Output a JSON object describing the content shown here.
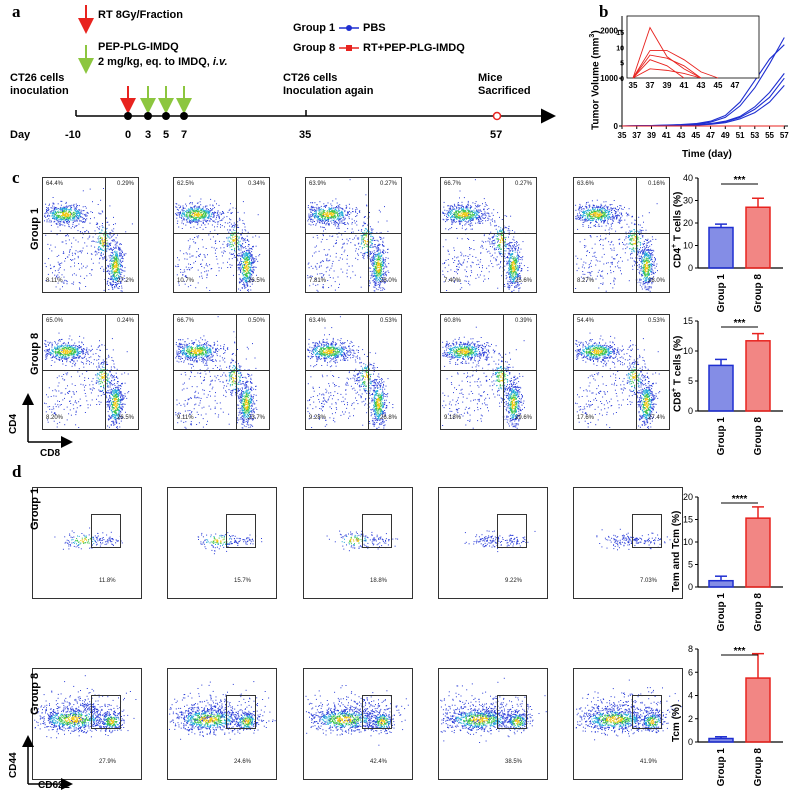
{
  "panels": {
    "a": "a",
    "b": "b",
    "c": "c",
    "d": "d"
  },
  "timeline": {
    "rt_label": "RT 8Gy/Fraction",
    "drug_label": "PEP-PLG-IMDQ",
    "dose_label": "2 mg/kg, eq. to IMDQ, ",
    "route_label": "i.v.",
    "legend_group1_name": "Group 1",
    "legend_group1_treat": "PBS",
    "legend_group8_name": "Group 8",
    "legend_group8_treat": "RT+PEP-PLG-IMDQ",
    "inoc1_line1": "CT26 cells",
    "inoc1_line2": "inoculation",
    "inoc2_line1": "CT26 cells",
    "inoc2_line2": "Inoculation again",
    "sac_line1": "Mice",
    "sac_line2": "Sacrificed",
    "day_label": "Day",
    "days": [
      "-10",
      "0",
      "3",
      "5",
      "7",
      "35",
      "57"
    ],
    "colors": {
      "rt": "#e8231f",
      "drug": "#8cc63f",
      "group1": "#1f2fd1",
      "group8": "#e8231f"
    }
  },
  "chart_data": [
    {
      "type": "line",
      "panel": "b",
      "title": "",
      "xlabel": "Time (day)",
      "ylabel": "Tumor Volume (mm3)",
      "ylabel_base": "Tumor Volume (mm",
      "ylabel_sup": "3",
      "ylabel_end": ")",
      "xticks": [
        "35",
        "37",
        "39",
        "41",
        "43",
        "45",
        "47",
        "49",
        "51",
        "53",
        "55",
        "57"
      ],
      "yticks": [
        "0",
        "1000",
        "2000"
      ],
      "xlim": [
        35,
        57.5
      ],
      "ylim": [
        0,
        2300
      ],
      "series": [
        {
          "name": "Group 1 mouse 1",
          "color": "#1f2fd1",
          "x": [
            35,
            37,
            39,
            41,
            43,
            45,
            47,
            49,
            51,
            53,
            55,
            57
          ],
          "y": [
            0,
            5,
            10,
            15,
            25,
            40,
            80,
            180,
            420,
            800,
            1300,
            1850
          ]
        },
        {
          "name": "Group 1 mouse 2",
          "color": "#1f2fd1",
          "x": [
            35,
            37,
            39,
            41,
            43,
            45,
            47,
            49,
            51,
            53,
            55,
            57
          ],
          "y": [
            0,
            5,
            10,
            20,
            30,
            50,
            100,
            220,
            500,
            950,
            1400,
            1700
          ]
        },
        {
          "name": "Group 1 mouse 3",
          "color": "#1f2fd1",
          "x": [
            35,
            37,
            39,
            41,
            43,
            45,
            47,
            49,
            51,
            53,
            55,
            57
          ],
          "y": [
            0,
            3,
            8,
            12,
            20,
            30,
            50,
            100,
            200,
            400,
            700,
            1100
          ]
        },
        {
          "name": "Group 1 mouse 4",
          "color": "#1f2fd1",
          "x": [
            35,
            37,
            39,
            41,
            43,
            45,
            47,
            49,
            51,
            53,
            55,
            57
          ],
          "y": [
            0,
            3,
            6,
            10,
            15,
            25,
            45,
            90,
            180,
            350,
            600,
            1000
          ]
        },
        {
          "name": "Group 1 mouse 5",
          "color": "#1f2fd1",
          "x": [
            35,
            37,
            39,
            41,
            43,
            45,
            47,
            49,
            51,
            53,
            55,
            57
          ],
          "y": [
            0,
            2,
            5,
            8,
            12,
            20,
            35,
            70,
            150,
            280,
            500,
            850
          ]
        },
        {
          "name": "Group 8 mice",
          "color": "#e8231f",
          "x": [
            35,
            37,
            39,
            41,
            43,
            45,
            47,
            49,
            51,
            53,
            55,
            57
          ],
          "y": [
            0,
            0,
            0,
            0,
            0,
            0,
            0,
            0,
            0,
            0,
            0,
            0
          ]
        }
      ],
      "inset": {
        "xticks": [
          "35",
          "37",
          "39",
          "41",
          "43",
          "45",
          "47"
        ],
        "yticks": [
          "0",
          "5",
          "10",
          "15"
        ],
        "xlim": [
          35,
          47
        ],
        "ylim": [
          0,
          19
        ],
        "series": [
          {
            "color": "#e8231f",
            "x": [
              35,
              37,
              39,
              41,
              43
            ],
            "y": [
              0,
              16.5,
              7,
              3,
              0
            ]
          },
          {
            "color": "#e8231f",
            "x": [
              35,
              37,
              39,
              41,
              43,
              45
            ],
            "y": [
              0,
              9,
              9,
              6,
              2,
              0
            ]
          },
          {
            "color": "#e8231f",
            "x": [
              35,
              37,
              39,
              41,
              43
            ],
            "y": [
              0,
              7.5,
              6.5,
              4,
              0
            ]
          },
          {
            "color": "#e8231f",
            "x": [
              35,
              37,
              39,
              41
            ],
            "y": [
              0,
              6,
              4,
              0
            ]
          },
          {
            "color": "#e8231f",
            "x": [
              35,
              37,
              39,
              41,
              43
            ],
            "y": [
              0,
              3,
              2.5,
              1.5,
              0
            ]
          }
        ]
      }
    },
    {
      "type": "bar",
      "panel": "c-top",
      "categories": [
        "Group 1",
        "Group 8"
      ],
      "values": [
        18,
        27
      ],
      "errors": [
        1.5,
        4
      ],
      "ylabel": "CD4+ T cells (%)",
      "ylabel_base": "CD4",
      "ylabel_sup": "+",
      "ylabel_end": " T cells (%)",
      "yticks": [
        "0",
        "10",
        "20",
        "30",
        "40"
      ],
      "ylim": [
        0,
        40
      ],
      "significance": "***",
      "colors": [
        "#1f2fd1",
        "#e8231f"
      ]
    },
    {
      "type": "bar",
      "panel": "c-bottom",
      "categories": [
        "Group 1",
        "Group 8"
      ],
      "values": [
        7.6,
        11.7
      ],
      "errors": [
        1.0,
        1.2
      ],
      "ylabel": "CD8+ T cells (%)",
      "ylabel_base": "CD8",
      "ylabel_sup": "+",
      "ylabel_end": " T cells (%)",
      "yticks": [
        "0",
        "5",
        "10",
        "15"
      ],
      "ylim": [
        0,
        15
      ],
      "significance": "***",
      "colors": [
        "#1f2fd1",
        "#e8231f"
      ]
    },
    {
      "type": "bar",
      "panel": "d-top",
      "categories": [
        "Group 1",
        "Group 8"
      ],
      "values": [
        1.4,
        15.3
      ],
      "errors": [
        1.0,
        2.5
      ],
      "ylabel": "Tem and Tcm (%)",
      "yticks": [
        "0",
        "5",
        "10",
        "15",
        "20"
      ],
      "ylim": [
        0,
        20
      ],
      "significance": "****",
      "colors": [
        "#1f2fd1",
        "#e8231f"
      ]
    },
    {
      "type": "bar",
      "panel": "d-bottom",
      "categories": [
        "Group 1",
        "Group 8"
      ],
      "values": [
        0.3,
        5.5
      ],
      "errors": [
        0.15,
        2.1
      ],
      "ylabel": "Tcm (%)",
      "yticks": [
        "0",
        "2",
        "4",
        "6",
        "8"
      ],
      "ylim": [
        0,
        8
      ],
      "significance": "***",
      "colors": [
        "#1f2fd1",
        "#e8231f"
      ]
    }
  ],
  "flow_c": {
    "row_labels": [
      "Group 1",
      "Group 8"
    ],
    "axis_y": "CD4",
    "axis_x": "CD8",
    "row1": [
      {
        "ul": "64.4%",
        "ur": "0.29%",
        "ll": "8.11%",
        "lr": "27.2%"
      },
      {
        "ul": "62.5%",
        "ur": "0.34%",
        "ll": "10.7%",
        "lr": "26.5%"
      },
      {
        "ul": "63.9%",
        "ur": "0.27%",
        "ll": "7.81%",
        "lr": "28.0%"
      },
      {
        "ul": "66.7%",
        "ur": "0.27%",
        "ll": "7.40%",
        "lr": "25.6%"
      },
      {
        "ul": "63.6%",
        "ur": "0.16%",
        "ll": "8.27%",
        "lr": "28.0%"
      }
    ],
    "row2": [
      {
        "ul": "65.0%",
        "ur": "0.24%",
        "ll": "8.20%",
        "lr": "26.5%"
      },
      {
        "ul": "66.7%",
        "ur": "0.50%",
        "ll": "9.11%",
        "lr": "23.7%"
      },
      {
        "ul": "63.4%",
        "ur": "0.53%",
        "ll": "9.28%",
        "lr": "26.8%"
      },
      {
        "ul": "60.8%",
        "ur": "0.39%",
        "ll": "9.18%",
        "lr": "29.6%"
      },
      {
        "ul": "54.4%",
        "ur": "0.53%",
        "ll": "17.6%",
        "lr": "27.4%"
      }
    ]
  },
  "flow_d": {
    "row_labels": [
      "Group 1",
      "Group 8"
    ],
    "axis_y": "CD44",
    "axis_x": "CD62L",
    "row1": [
      "11.8%",
      "15.7%",
      "18.8%",
      "9.22%",
      "7.03%"
    ],
    "row2": [
      "27.9%",
      "24.6%",
      "42.4%",
      "38.5%",
      "41.9%"
    ]
  }
}
